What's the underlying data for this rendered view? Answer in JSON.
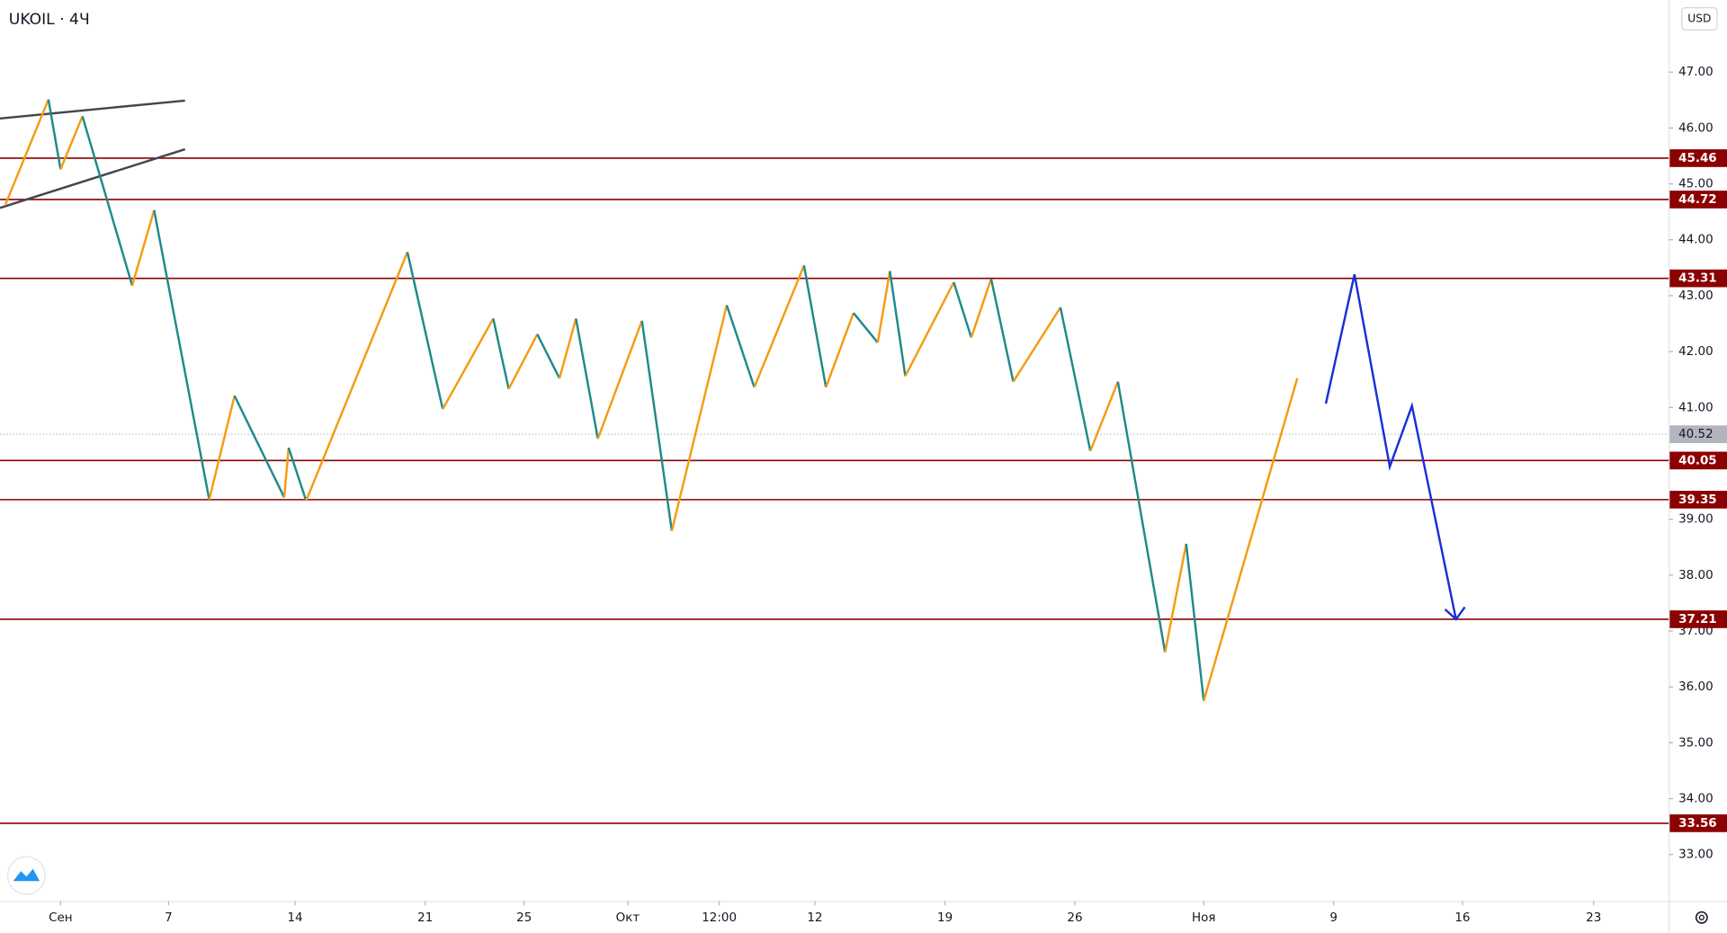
{
  "chart_data": {
    "type": "line",
    "title": "UKOIL · 4Ч",
    "currency": "USD",
    "xlim": [
      -2.35,
      62.4
    ],
    "ylim": [
      32.17,
      48.29
    ],
    "xticks": [
      {
        "value": 0,
        "label": "Сен"
      },
      {
        "value": 4.19,
        "label": "7"
      },
      {
        "value": 9.1,
        "label": "14"
      },
      {
        "value": 14.15,
        "label": "21"
      },
      {
        "value": 17.99,
        "label": "25"
      },
      {
        "value": 22.01,
        "label": "Окт"
      },
      {
        "value": 25.56,
        "label": "12:00"
      },
      {
        "value": 29.27,
        "label": "12"
      },
      {
        "value": 34.32,
        "label": "19"
      },
      {
        "value": 39.36,
        "label": "26"
      },
      {
        "value": 44.36,
        "label": "Ноя"
      },
      {
        "value": 49.4,
        "label": "9"
      },
      {
        "value": 54.4,
        "label": "16"
      },
      {
        "value": 59.49,
        "label": "23"
      }
    ],
    "yticks": [
      {
        "value": 33,
        "label": "33.00"
      },
      {
        "value": 34,
        "label": "34.00"
      },
      {
        "value": 35,
        "label": "35.00"
      },
      {
        "value": 36,
        "label": "36.00"
      },
      {
        "value": 37,
        "label": "37.00"
      },
      {
        "value": 38,
        "label": "38.00"
      },
      {
        "value": 39,
        "label": "39.00"
      },
      {
        "value": 40,
        "label": "40.00"
      },
      {
        "value": 41,
        "label": "41.00"
      },
      {
        "value": 42,
        "label": "42.00"
      },
      {
        "value": 43,
        "label": "43.00"
      },
      {
        "value": 44,
        "label": "44.00"
      },
      {
        "value": 45,
        "label": "45.00"
      },
      {
        "value": 46,
        "label": "46.00"
      },
      {
        "value": 47,
        "label": "47.00"
      }
    ],
    "levels": [
      45.46,
      44.72,
      43.31,
      40.05,
      39.35,
      37.21,
      33.56
    ],
    "level_color": "#8b0000",
    "current_price": 40.52,
    "zigzag": {
      "up_color": "#f39c12",
      "down_color": "#1f8a8a",
      "x": [
        -2.14,
        -0.47,
        0,
        0.85,
        2.78,
        3.63,
        5.77,
        6.75,
        8.68,
        8.85,
        9.53,
        13.46,
        14.83,
        16.79,
        17.39,
        18.5,
        19.36,
        20,
        20.85,
        22.56,
        23.72,
        25.85,
        26.92,
        28.85,
        29.7,
        30.77,
        31.71,
        32.18,
        32.78,
        34.66,
        35.34,
        36.11,
        36.97,
        38.8,
        39.96,
        41.03,
        42.86,
        43.68,
        44.36,
        47.99
      ],
      "values": [
        44.63,
        46.51,
        45.26,
        46.21,
        43.18,
        44.53,
        39.35,
        41.21,
        39.39,
        40.28,
        39.33,
        43.78,
        40.97,
        42.59,
        41.33,
        42.31,
        41.52,
        42.59,
        40.44,
        42.55,
        38.79,
        42.83,
        41.36,
        43.54,
        41.36,
        42.69,
        42.16,
        43.44,
        41.56,
        43.24,
        42.25,
        43.3,
        41.46,
        42.79,
        40.22,
        41.46,
        36.62,
        38.56,
        35.75,
        41.52
      ]
    },
    "forecast": {
      "color": "#1a2fd6",
      "x": [
        49.1,
        50.21,
        51.58,
        52.44,
        54.15
      ],
      "values": [
        41.07,
        43.38,
        39.94,
        41.03,
        37.21
      ]
    },
    "trendlines": [
      {
        "color": "#434651",
        "x": [
          -2.35,
          4.83
        ],
        "values": [
          46.17,
          46.49
        ]
      },
      {
        "color": "#434651",
        "x": [
          -2.35,
          4.83
        ],
        "values": [
          44.57,
          45.62
        ]
      }
    ]
  }
}
